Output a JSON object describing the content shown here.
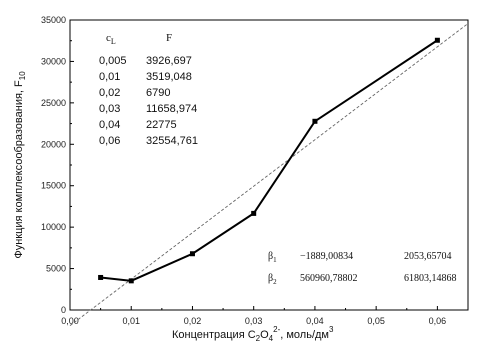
{
  "chart_data": {
    "type": "line",
    "xlabel": "Концентрация C₂O₄²⁻, моль/дм³",
    "ylabel": "Функция комплексообразования, F₁₀",
    "xlim": [
      0.0,
      0.065
    ],
    "ylim": [
      0,
      35000
    ],
    "x_ticks": [
      "0,00",
      "0,01",
      "0,02",
      "0,03",
      "0,04",
      "0,05",
      "0,06"
    ],
    "x_tick_values": [
      0.0,
      0.01,
      0.02,
      0.03,
      0.04,
      0.05,
      0.06
    ],
    "y_ticks": [
      "0",
      "5000",
      "10000",
      "15000",
      "20000",
      "25000",
      "30000",
      "35000"
    ],
    "y_tick_values": [
      0,
      5000,
      10000,
      15000,
      20000,
      25000,
      30000,
      35000
    ],
    "series": [
      {
        "x": [
          0.005,
          0.01,
          0.02,
          0.03,
          0.04,
          0.06
        ],
        "y": [
          3926.697,
          3519.048,
          6790,
          11658.974,
          22775,
          32554.761
        ]
      }
    ],
    "fit_line": {
      "x": [
        0.0,
        0.065
      ],
      "y": [
        -1889.00834,
        34573.4079
      ]
    },
    "table": {
      "headers": [
        "c",
        "L",
        "F"
      ],
      "rows": [
        [
          "0,005",
          "3926,697"
        ],
        [
          "0,01",
          "3519,048"
        ],
        [
          "0,02",
          "6790"
        ],
        [
          "0,03",
          "11658,974"
        ],
        [
          "0,04",
          "22775"
        ],
        [
          "0,06",
          "32554,761"
        ]
      ]
    },
    "betas": [
      {
        "symbol": "β",
        "sub": "1",
        "value": "−1889,00834",
        "error": "2053,65704"
      },
      {
        "symbol": "β",
        "sub": "2",
        "value": "560960,78802",
        "error": "61803,14868"
      }
    ]
  }
}
